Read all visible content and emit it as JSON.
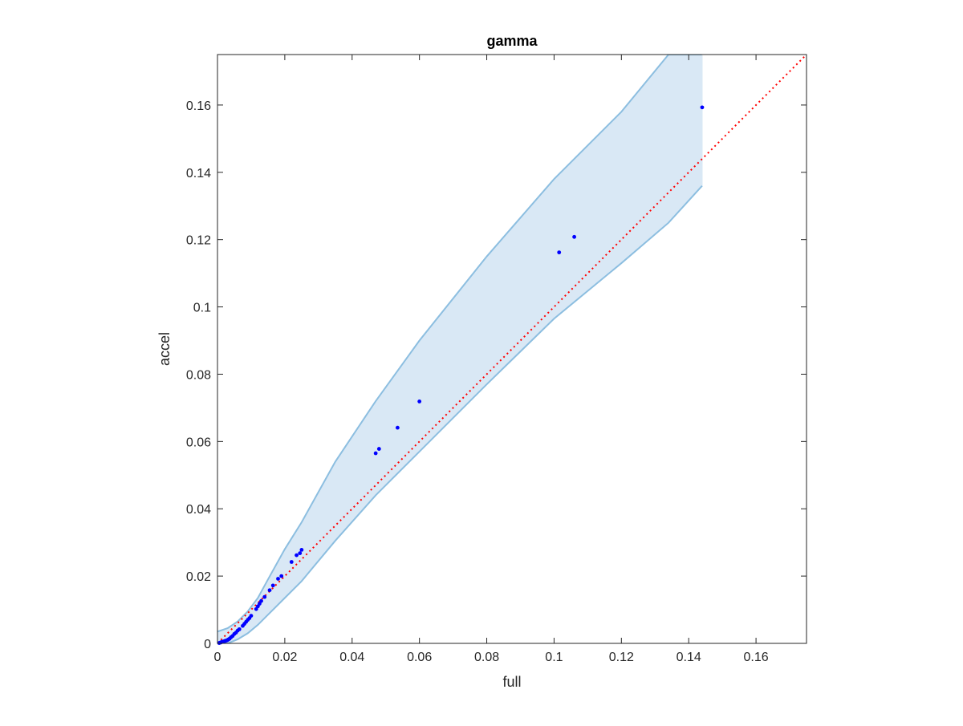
{
  "colors": {
    "band_fill": "#d9e8f5",
    "band_edge": "#8cbee0",
    "points": "#0000ff",
    "reference_line": "#ff0000",
    "axis": "#262626"
  },
  "chart_data": {
    "type": "scatter",
    "title": "gamma",
    "xlabel": "full",
    "ylabel": "accel",
    "xlim": [
      0,
      0.175
    ],
    "ylim": [
      0,
      0.175
    ],
    "grid": false,
    "legend": "none",
    "x_ticks": [
      0,
      0.02,
      0.04,
      0.06,
      0.08,
      0.1,
      0.12,
      0.14,
      0.16
    ],
    "y_ticks": [
      0,
      0.02,
      0.04,
      0.06,
      0.08,
      0.1,
      0.12,
      0.14,
      0.16
    ],
    "x_tick_labels": [
      "0",
      "0.02",
      "0.04",
      "0.06",
      "0.08",
      "0.1",
      "0.12",
      "0.14",
      "0.16"
    ],
    "y_tick_labels": [
      "0",
      "0.02",
      "0.04",
      "0.06",
      "0.08",
      "0.1",
      "0.12",
      "0.14",
      "0.16"
    ],
    "reference_line": {
      "style": "dotted",
      "x": [
        0,
        0.175
      ],
      "y": [
        0,
        0.175
      ]
    },
    "band": {
      "style": "shaded",
      "x": [
        0,
        0.003,
        0.006,
        0.009,
        0.012,
        0.015,
        0.02,
        0.025,
        0.035,
        0.047,
        0.06,
        0.08,
        0.1,
        0.12,
        0.134,
        0.144
      ],
      "upper": [
        0.0035,
        0.0045,
        0.0065,
        0.0095,
        0.0135,
        0.019,
        0.028,
        0.036,
        0.054,
        0.072,
        0.09,
        0.115,
        0.138,
        0.158,
        0.175,
        0.175
      ],
      "lower": [
        0,
        0,
        0.0012,
        0.003,
        0.0055,
        0.0085,
        0.0135,
        0.0185,
        0.0305,
        0.044,
        0.057,
        0.077,
        0.0965,
        0.113,
        0.125,
        0.136
      ]
    },
    "points": {
      "x": [
        0.0005,
        0.0008,
        0.001,
        0.0013,
        0.0016,
        0.0019,
        0.0022,
        0.0025,
        0.0028,
        0.003,
        0.0033,
        0.0036,
        0.004,
        0.0045,
        0.005,
        0.0055,
        0.006,
        0.0065,
        0.0075,
        0.008,
        0.0085,
        0.009,
        0.0095,
        0.01,
        0.0115,
        0.012,
        0.0125,
        0.013,
        0.014,
        0.0155,
        0.0165,
        0.018,
        0.019,
        0.022,
        0.0235,
        0.0245,
        0.025,
        0.047,
        0.048,
        0.0535,
        0.06,
        0.1015,
        0.106,
        0.144
      ],
      "y": [
        0.0001,
        0.0002,
        0.0003,
        0.0004,
        0.0005,
        0.0006,
        0.0007,
        0.0008,
        0.0009,
        0.001,
        0.0012,
        0.0014,
        0.0018,
        0.0022,
        0.0028,
        0.0032,
        0.0038,
        0.0042,
        0.0052,
        0.0058,
        0.0064,
        0.007,
        0.0075,
        0.0082,
        0.0102,
        0.011,
        0.0118,
        0.0126,
        0.0138,
        0.0158,
        0.0172,
        0.0192,
        0.02,
        0.0242,
        0.0262,
        0.0268,
        0.0278,
        0.0565,
        0.0578,
        0.0641,
        0.0719,
        0.1162,
        0.1208,
        0.1593
      ]
    }
  }
}
